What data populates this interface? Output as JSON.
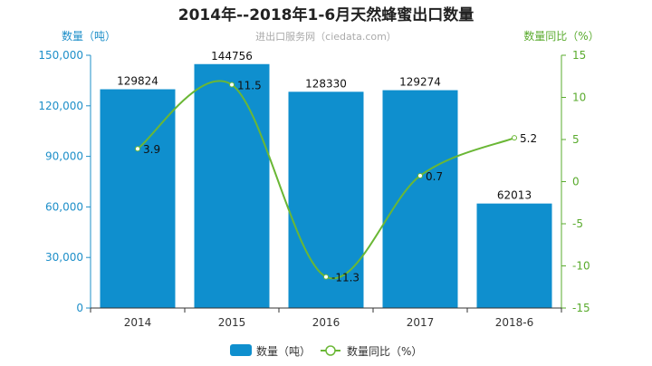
{
  "chart_data": {
    "type": "bar",
    "title": "2014年--2018年1-6月天然蜂蜜出口数量",
    "subtitle": "进出口服务网（ciedata.com）",
    "ylabel_left": "数量（吨）",
    "ylabel_right": "数量同比（%）",
    "categories": [
      "2014",
      "2015",
      "2016",
      "2017",
      "2018-6"
    ],
    "y_left": {
      "min": 0,
      "max": 150000,
      "ticks": [
        0,
        30000,
        60000,
        90000,
        120000,
        150000
      ],
      "tick_labels": [
        "0",
        "30,000",
        "60,000",
        "90,000",
        "120,000",
        "150,000"
      ]
    },
    "y_right": {
      "min": -15,
      "max": 15,
      "ticks": [
        -15,
        -10,
        -5,
        0,
        5,
        10,
        15
      ],
      "tick_labels": [
        "-15",
        "-10",
        "-5",
        "0",
        "5",
        "10",
        "15"
      ]
    },
    "series": [
      {
        "name": "数量（吨）",
        "type": "bar",
        "axis": "left",
        "values": [
          129824,
          144756,
          128330,
          129274,
          62013
        ],
        "labels": [
          "129824",
          "144756",
          "128330",
          "129274",
          "62013"
        ],
        "color": "#0f8fce"
      },
      {
        "name": "数量同比（%）",
        "type": "line",
        "axis": "right",
        "values": [
          3.9,
          11.5,
          -11.3,
          0.7,
          5.2
        ],
        "labels": [
          "3.9",
          "11.5",
          "-11.3",
          "0.7",
          "5.2"
        ],
        "color": "#6ab735"
      }
    ],
    "legend_position": "bottom-center",
    "grid": false,
    "colors": {
      "left_axis": "#1e8fc9",
      "right_axis": "#5aab2e",
      "title": "#222222"
    }
  }
}
